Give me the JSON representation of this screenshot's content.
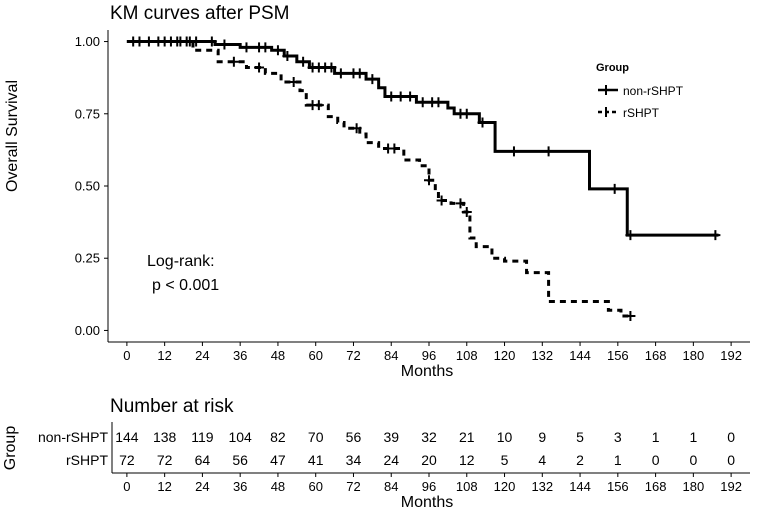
{
  "chart_data": {
    "type": "line",
    "title": "KM curves after PSM",
    "xlabel": "Months",
    "ylabel": "Overall Survival",
    "xlim": [
      -6,
      198
    ],
    "ylim": [
      -0.04,
      1.04
    ],
    "x_ticks": [
      0,
      12,
      24,
      36,
      48,
      60,
      72,
      84,
      96,
      108,
      120,
      132,
      144,
      156,
      168,
      180,
      192
    ],
    "x_tick_labels": [
      "0",
      "12",
      "24",
      "36",
      "48",
      "60",
      "72",
      "84",
      "96",
      "108",
      "120",
      "132",
      "144",
      "156",
      "168",
      "180",
      "192"
    ],
    "y_ticks": [
      0,
      0.25,
      0.5,
      0.75,
      1.0
    ],
    "y_tick_labels": [
      "0.00",
      "0.25",
      "0.50",
      "0.75",
      "1.00"
    ],
    "grid": false,
    "legend": {
      "title": "Group",
      "position": "top-right"
    },
    "annotation": [
      "Log-rank:",
      "p < 0.001"
    ],
    "series": [
      {
        "name": "non-rSHPT",
        "line_style": "solid",
        "steps": [
          [
            0,
            1.0
          ],
          [
            28,
            0.99
          ],
          [
            36,
            0.98
          ],
          [
            46,
            0.97
          ],
          [
            50,
            0.95
          ],
          [
            54,
            0.93
          ],
          [
            58,
            0.91
          ],
          [
            66,
            0.89
          ],
          [
            76,
            0.87
          ],
          [
            80,
            0.84
          ],
          [
            82,
            0.81
          ],
          [
            92,
            0.79
          ],
          [
            102,
            0.77
          ],
          [
            104,
            0.75
          ],
          [
            112,
            0.72
          ],
          [
            117,
            0.62
          ],
          [
            147,
            0.49
          ],
          [
            159,
            0.33
          ],
          [
            188,
            0.33
          ]
        ],
        "censor_x": [
          2,
          4,
          7,
          10,
          12,
          14,
          16,
          17,
          19,
          20,
          22,
          27,
          31,
          38,
          42,
          44,
          48,
          51,
          56,
          59,
          61,
          63,
          65,
          68,
          72,
          74,
          78,
          84,
          87,
          90,
          94,
          97,
          99,
          106,
          108,
          113,
          123,
          134,
          155,
          160,
          187
        ]
      },
      {
        "name": "rSHPT",
        "line_style": "dashed",
        "steps": [
          [
            0,
            1.0
          ],
          [
            21,
            0.97
          ],
          [
            29,
            0.93
          ],
          [
            38,
            0.91
          ],
          [
            44,
            0.89
          ],
          [
            49,
            0.86
          ],
          [
            55,
            0.83
          ],
          [
            57,
            0.78
          ],
          [
            64,
            0.74
          ],
          [
            67,
            0.72
          ],
          [
            69,
            0.7
          ],
          [
            74,
            0.68
          ],
          [
            76,
            0.65
          ],
          [
            80,
            0.63
          ],
          [
            88,
            0.59
          ],
          [
            93,
            0.57
          ],
          [
            96,
            0.52
          ],
          [
            98,
            0.48
          ],
          [
            99,
            0.45
          ],
          [
            103,
            0.44
          ],
          [
            107,
            0.41
          ],
          [
            109,
            0.32
          ],
          [
            111,
            0.29
          ],
          [
            116,
            0.25
          ],
          [
            120,
            0.24
          ],
          [
            127,
            0.2
          ],
          [
            134,
            0.1
          ],
          [
            153,
            0.07
          ],
          [
            157,
            0.05
          ],
          [
            160,
            0.05
          ]
        ],
        "censor_x": [
          34,
          42,
          53,
          59,
          61,
          73,
          83,
          85,
          96,
          100,
          106,
          108,
          160
        ]
      }
    ],
    "risk_table": {
      "title": "Number at risk",
      "ylabel": "Group",
      "xlabel": "Months",
      "rows": [
        {
          "group": "non-rSHPT",
          "values": [
            144,
            138,
            119,
            104,
            82,
            70,
            56,
            39,
            32,
            21,
            10,
            9,
            5,
            3,
            1,
            1,
            0
          ]
        },
        {
          "group": "rSHPT",
          "values": [
            72,
            72,
            64,
            56,
            47,
            41,
            34,
            24,
            20,
            12,
            5,
            4,
            2,
            1,
            0,
            0,
            0
          ]
        }
      ]
    }
  }
}
